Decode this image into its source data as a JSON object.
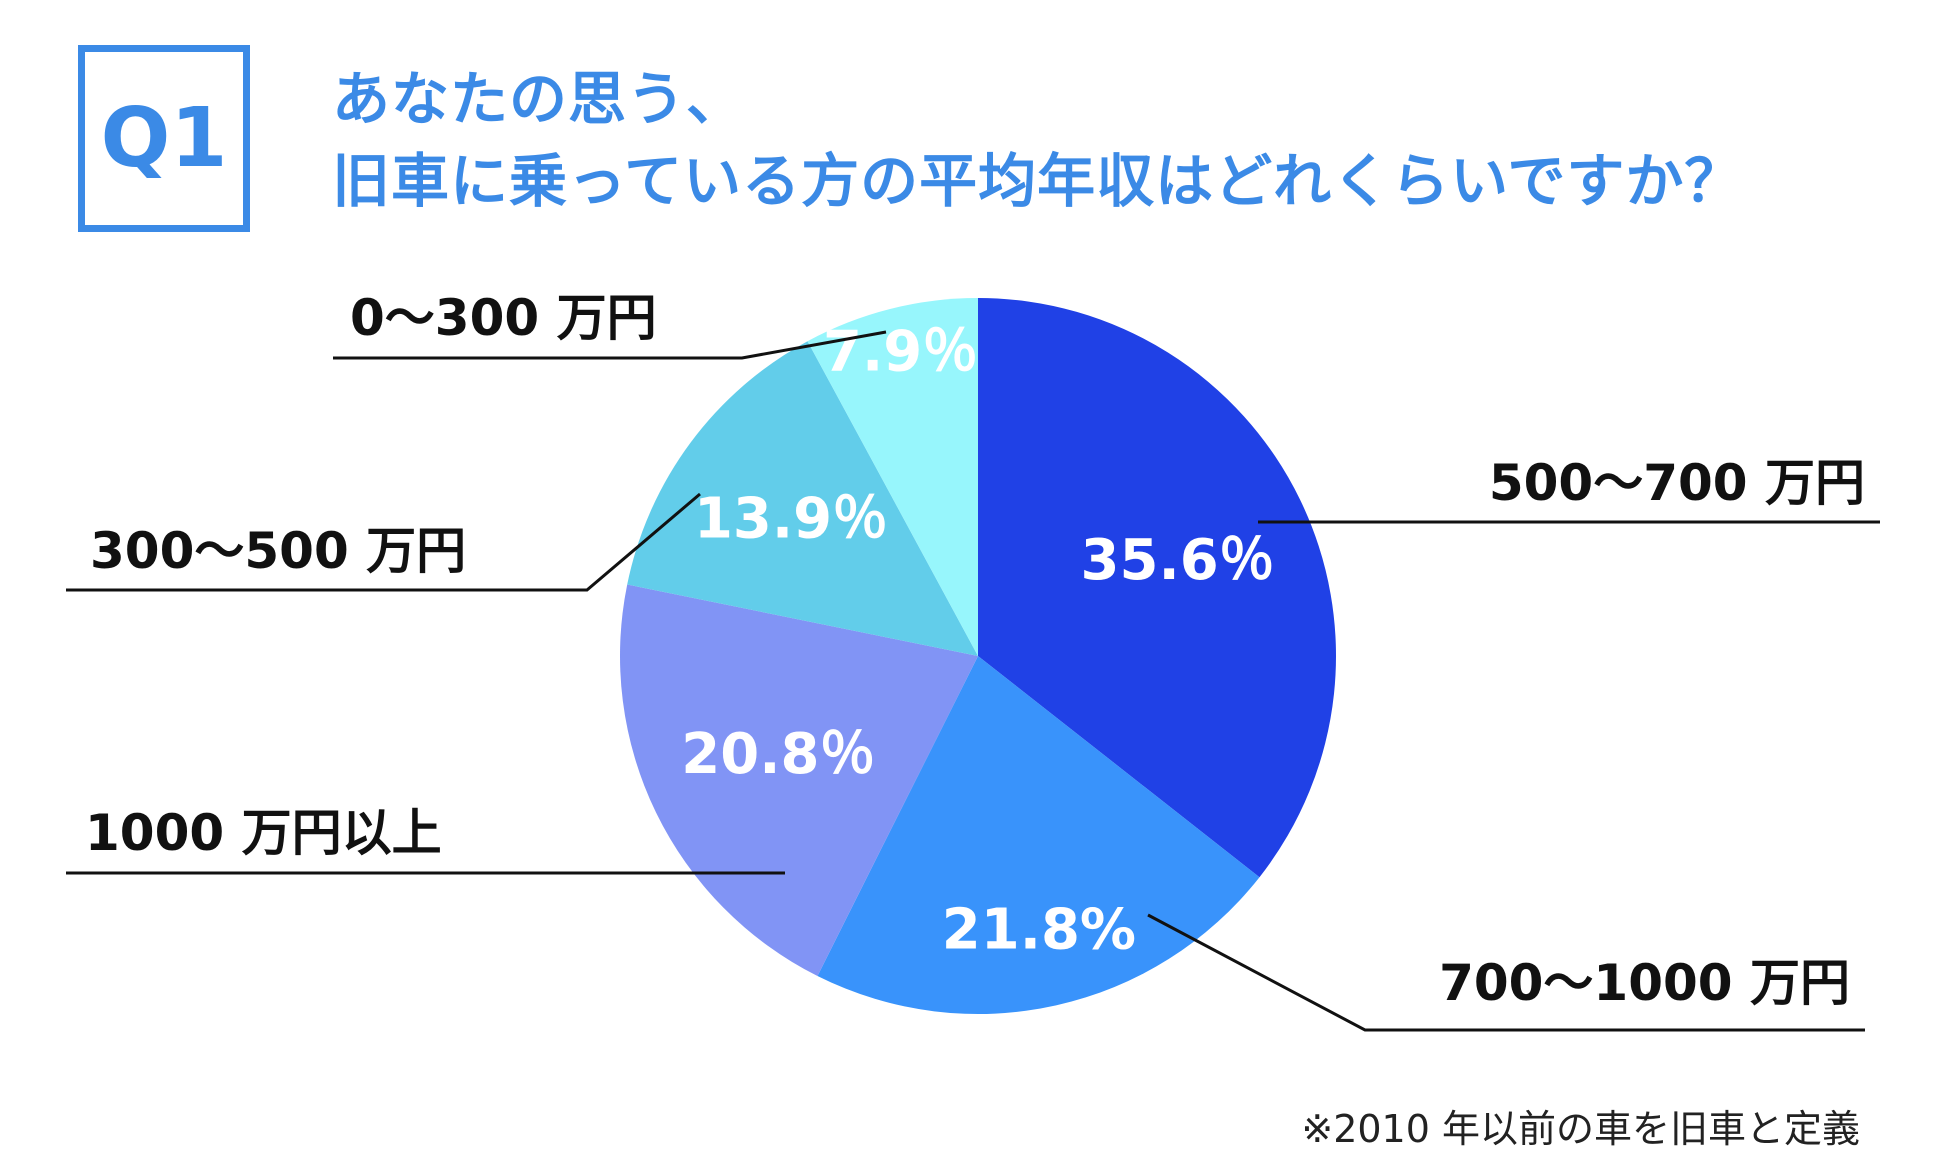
{
  "question_badge": "Q1",
  "title": {
    "line1": "あなたの思う、",
    "line2": "旧車に乗っている方の平均年収はどれくらいですか？"
  },
  "chart_data": {
    "type": "pie",
    "start": "top",
    "direction": "clockwise",
    "slices": [
      {
        "label": "500〜700 万円",
        "value": 35.6,
        "display": "35.6％",
        "color": "#2041e6"
      },
      {
        "label": "700〜1000 万円",
        "value": 21.8,
        "display": "21.8%",
        "color": "#3993fb"
      },
      {
        "label": "1000 万円以上",
        "value": 20.8,
        "display": "20.8％",
        "color": "#8194f5"
      },
      {
        "label": "300〜500 万円",
        "value": 13.9,
        "display": "13.9％",
        "color": "#62cdea"
      },
      {
        "label": "0〜300 万円",
        "value": 7.9,
        "display": "7.9％",
        "color": "#97f6fc"
      }
    ]
  },
  "footnote": "※2010 年以前の車を旧車と定義"
}
